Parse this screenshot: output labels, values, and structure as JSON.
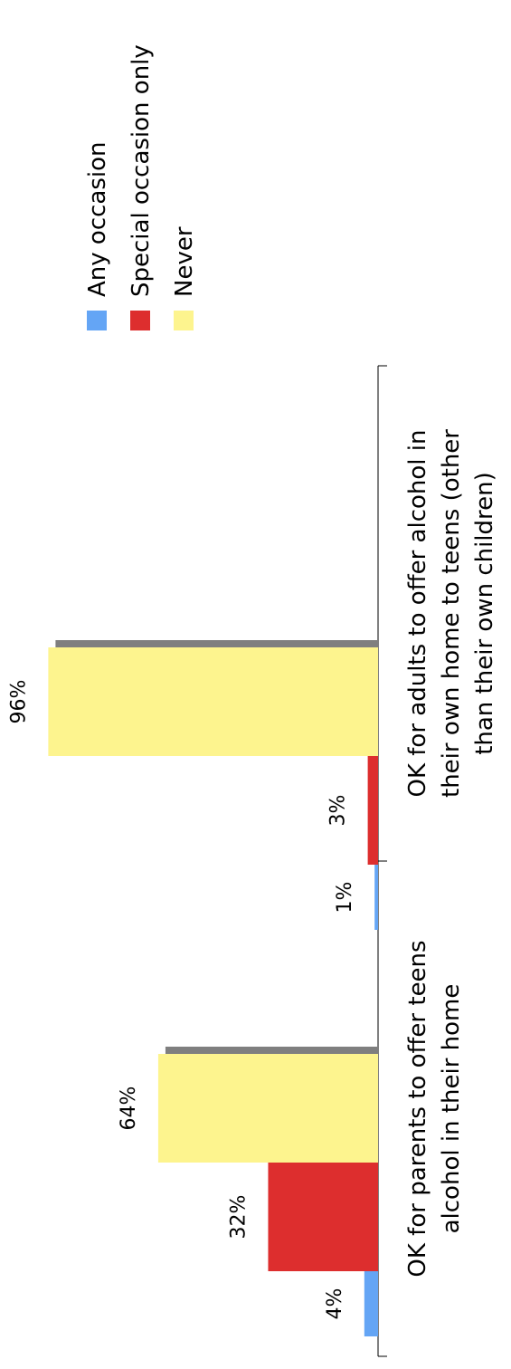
{
  "chart_data": {
    "type": "bar",
    "orientation": "horizontal (rotated)",
    "title": "",
    "xlabel": "",
    "ylabel": "",
    "categories": [
      "OK for parents to offer teens alcohol in their home",
      "OK for adults to offer alcohol in their own home to teens (other than their own children)"
    ],
    "category_lines": [
      [
        "OK for parents to offer teens",
        "alcohol in their home"
      ],
      [
        "OK for adults to offer alcohol in",
        "their own home to teens (other",
        "than their own children)"
      ]
    ],
    "series": [
      {
        "name": "Any occasion",
        "values": [
          4,
          1
        ],
        "labels": [
          "4%",
          "1%"
        ],
        "color": "#64a5f5"
      },
      {
        "name": "Special occasion only",
        "values": [
          32,
          3
        ],
        "labels": [
          "32%",
          "3%"
        ],
        "color": "#dd2e2e"
      },
      {
        "name": "Never",
        "values": [
          64,
          96
        ],
        "labels": [
          "64%",
          "96%"
        ],
        "color": "#fdf48e",
        "shadow_color": "#7f7f7f"
      }
    ],
    "value_range": [
      0,
      100
    ],
    "grid": false,
    "legend_position": "top-right",
    "legend": [
      "Any occasion",
      "Special occasion only",
      "Never"
    ]
  }
}
